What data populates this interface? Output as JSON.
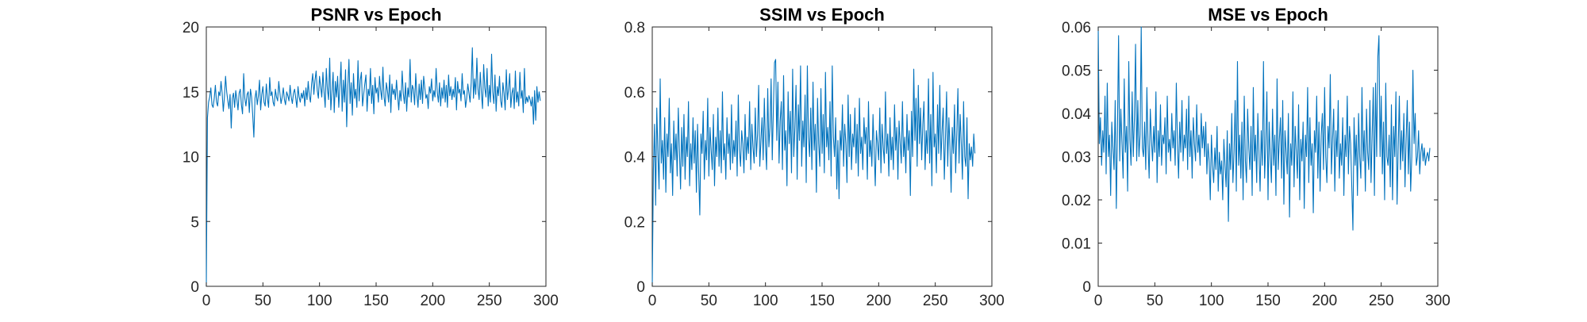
{
  "chart_data": [
    {
      "type": "line",
      "title": "PSNR vs Epoch",
      "xlabel": "",
      "ylabel": "",
      "xlim": [
        0,
        300
      ],
      "ylim": [
        0,
        20
      ],
      "xticks": [
        0,
        50,
        100,
        150,
        200,
        250,
        300
      ],
      "yticks": [
        0,
        5,
        10,
        15,
        20
      ],
      "grid": false,
      "color": "#0072BD",
      "x_step": 1,
      "series": [
        {
          "values": [
            0,
            13,
            14.2,
            14.6,
            15.3,
            14,
            13.8,
            14.5,
            15.5,
            14.2,
            13.9,
            15,
            14.7,
            15.8,
            14.9,
            13.5,
            14.6,
            16.2,
            15,
            14.3,
            13.7,
            14.8,
            12.2,
            14.5,
            14.9,
            13.8,
            15.1,
            14.4,
            13.6,
            14.9,
            15.2,
            14,
            13.3,
            16.4,
            14.5,
            13.9,
            14.8,
            15,
            13.4,
            15.2,
            14.6,
            13.2,
            11.5,
            14.5,
            15.1,
            14,
            14.7,
            15.9,
            13.6,
            14.8,
            15.4,
            14.2,
            13.9,
            15.6,
            14.5,
            13.8,
            16.1,
            14.7,
            15,
            14.2,
            13.9,
            15.2,
            14.6,
            14.3,
            15.8,
            14.9,
            14.1,
            14.6,
            15.3,
            14.4,
            14,
            15,
            14.7,
            14.3,
            15.5,
            14.6,
            14.1,
            14.9,
            15.2,
            14.5,
            13.8,
            15.4,
            14.6,
            14.2,
            14.9,
            14.5,
            15.1,
            13.9,
            15.3,
            14.4,
            15.8,
            14.7,
            14.2,
            15.6,
            16.4,
            14.8,
            15.9,
            16.6,
            15.1,
            14.5,
            16.2,
            15.4,
            14.6,
            16.5,
            15,
            13.8,
            16.8,
            15.2,
            14.4,
            17.6,
            13.6,
            15,
            16.5,
            13.4,
            15.8,
            14.6,
            16.2,
            13.8,
            15.4,
            17.3,
            13.5,
            15.9,
            14.2,
            16.7,
            12.3,
            15.4,
            17.5,
            14.1,
            15.7,
            13.2,
            16.4,
            14.5,
            15.2,
            13.8,
            17.4,
            14.3,
            15.9,
            16.5,
            13.9,
            14.8,
            15.6,
            16.3,
            13.5,
            15.2,
            14.7,
            16.8,
            14.1,
            15.5,
            13.3,
            16.1,
            14.9,
            15.3,
            14.2,
            16.2,
            15.1,
            14.4,
            16.9,
            14.6,
            13.9,
            15.7,
            15.1,
            14.2,
            16.3,
            13.4,
            15.6,
            14.8,
            15.2,
            14.4,
            15.9,
            14.7,
            13.6,
            15.1,
            14.3,
            16.6,
            14.9,
            14.1,
            15.7,
            13.5,
            15.3,
            14.6,
            17.5,
            14.2,
            15.5,
            15.2,
            14,
            16.4,
            14.8,
            13.8,
            15.6,
            14.4,
            15.9,
            14.1,
            16.2,
            15.3,
            14.5,
            14.8,
            13.7,
            15.4,
            14.9,
            16,
            14.3,
            15.1,
            14.6,
            16.8,
            15,
            14.2,
            15.7,
            13.9,
            15.3,
            14.5,
            15.9,
            14.2,
            15.5,
            13.8,
            16.3,
            14.7,
            15.4,
            14.4,
            15.2,
            14.6,
            16.1,
            13.6,
            15.8,
            14.9,
            15.2,
            14.3,
            16.4,
            14.8,
            15.1,
            13.8,
            14.5,
            15.6,
            14.9,
            14.2,
            15.7,
            18.4,
            14.5,
            16,
            14.8,
            17.6,
            15.2,
            14.4,
            16.5,
            14.9,
            13.7,
            17.1,
            15.3,
            14.6,
            16.8,
            13.9,
            15.5,
            14.2,
            17.9,
            15,
            14.1,
            16.3,
            13.5,
            15.4,
            14.7,
            16.2,
            14.3,
            13.8,
            15.7,
            14.9,
            13.6,
            16.7,
            14.4,
            15.2,
            16.4,
            13.8,
            14.9,
            15.3,
            13.7,
            16.6,
            14.2,
            15,
            13.9,
            16.5,
            14.5,
            15.1,
            13.4,
            16.8,
            14.1,
            14.6,
            14.2,
            14.7,
            14.4,
            13.9,
            14.6,
            12.5,
            15.1,
            12.8,
            15.4,
            14.2,
            15,
            14.3
          ]
        }
      ]
    },
    {
      "type": "line",
      "title": "SSIM vs Epoch",
      "xlabel": "",
      "ylabel": "",
      "xlim": [
        0,
        300
      ],
      "ylim": [
        0,
        0.8
      ],
      "xticks": [
        0,
        50,
        100,
        150,
        200,
        250,
        300
      ],
      "yticks": [
        0,
        0.2,
        0.4,
        0.6,
        0.8
      ],
      "grid": false,
      "color": "#0072BD",
      "x_step": 1,
      "series": [
        {
          "values": [
            0,
            0.36,
            0.5,
            0.25,
            0.55,
            0.41,
            0.3,
            0.64,
            0.38,
            0.45,
            0.33,
            0.52,
            0.29,
            0.47,
            0.4,
            0.58,
            0.35,
            0.44,
            0.28,
            0.51,
            0.39,
            0.47,
            0.34,
            0.55,
            0.42,
            0.3,
            0.49,
            0.37,
            0.53,
            0.33,
            0.46,
            0.4,
            0.57,
            0.31,
            0.44,
            0.36,
            0.52,
            0.38,
            0.48,
            0.29,
            0.5,
            0.35,
            0.22,
            0.47,
            0.41,
            0.54,
            0.33,
            0.45,
            0.39,
            0.58,
            0.34,
            0.49,
            0.42,
            0.36,
            0.53,
            0.31,
            0.46,
            0.4,
            0.55,
            0.37,
            0.48,
            0.35,
            0.6,
            0.39,
            0.44,
            0.33,
            0.52,
            0.41,
            0.47,
            0.36,
            0.56,
            0.38,
            0.45,
            0.4,
            0.51,
            0.34,
            0.59,
            0.42,
            0.37,
            0.48,
            0.44,
            0.35,
            0.53,
            0.39,
            0.46,
            0.41,
            0.57,
            0.36,
            0.5,
            0.43,
            0.38,
            0.55,
            0.4,
            0.47,
            0.62,
            0.37,
            0.45,
            0.52,
            0.39,
            0.58,
            0.44,
            0.36,
            0.61,
            0.43,
            0.49,
            0.64,
            0.39,
            0.55,
            0.69,
            0.7,
            0.45,
            0.63,
            0.38,
            0.51,
            0.57,
            0.36,
            0.65,
            0.42,
            0.48,
            0.31,
            0.6,
            0.44,
            0.54,
            0.35,
            0.67,
            0.4,
            0.49,
            0.62,
            0.33,
            0.56,
            0.45,
            0.68,
            0.37,
            0.51,
            0.43,
            0.59,
            0.32,
            0.68,
            0.46,
            0.4,
            0.55,
            0.36,
            0.63,
            0.42,
            0.5,
            0.29,
            0.58,
            0.44,
            0.37,
            0.61,
            0.41,
            0.53,
            0.35,
            0.66,
            0.43,
            0.49,
            0.39,
            0.57,
            0.34,
            0.68,
            0.46,
            0.4,
            0.52,
            0.3,
            0.45,
            0.27,
            0.48,
            0.42,
            0.56,
            0.37,
            0.5,
            0.44,
            0.32,
            0.59,
            0.4,
            0.53,
            0.36,
            0.47,
            0.43,
            0.55,
            0.38,
            0.5,
            0.34,
            0.58,
            0.41,
            0.46,
            0.36,
            0.52,
            0.44,
            0.49,
            0.33,
            0.57,
            0.4,
            0.45,
            0.37,
            0.53,
            0.42,
            0.31,
            0.48,
            0.44,
            0.39,
            0.55,
            0.35,
            0.5,
            0.43,
            0.38,
            0.6,
            0.41,
            0.47,
            0.34,
            0.52,
            0.39,
            0.46,
            0.36,
            0.56,
            0.42,
            0.49,
            0.33,
            0.51,
            0.44,
            0.38,
            0.57,
            0.4,
            0.46,
            0.35,
            0.53,
            0.42,
            0.48,
            0.28,
            0.54,
            0.4,
            0.67,
            0.45,
            0.58,
            0.37,
            0.62,
            0.44,
            0.55,
            0.39,
            0.5,
            0.57,
            0.36,
            0.48,
            0.41,
            0.64,
            0.38,
            0.53,
            0.31,
            0.66,
            0.43,
            0.47,
            0.35,
            0.56,
            0.41,
            0.62,
            0.39,
            0.48,
            0.55,
            0.33,
            0.46,
            0.6,
            0.37,
            0.52,
            0.43,
            0.29,
            0.49,
            0.41,
            0.56,
            0.35,
            0.47,
            0.61,
            0.38,
            0.53,
            0.44,
            0.33,
            0.57,
            0.4,
            0.37,
            0.52,
            0.27,
            0.44,
            0.39,
            0.43,
            0.37,
            0.47,
            0.41
          ]
        }
      ]
    },
    {
      "type": "line",
      "title": "MSE vs Epoch",
      "xlabel": "",
      "ylabel": "",
      "xlim": [
        0,
        300
      ],
      "ylim": [
        0,
        0.06
      ],
      "xticks": [
        0,
        50,
        100,
        150,
        200,
        250,
        300
      ],
      "yticks": [
        0,
        0.01,
        0.02,
        0.03,
        0.04,
        0.05,
        0.06
      ],
      "grid": false,
      "color": "#0072BD",
      "x_step": 1,
      "series": [
        {
          "values": [
            0.06,
            0.033,
            0.039,
            0.028,
            0.036,
            0.031,
            0.044,
            0.026,
            0.047,
            0.03,
            0.035,
            0.021,
            0.038,
            0.032,
            0.027,
            0.043,
            0.018,
            0.036,
            0.058,
            0.029,
            0.041,
            0.033,
            0.025,
            0.048,
            0.031,
            0.037,
            0.022,
            0.052,
            0.034,
            0.028,
            0.045,
            0.03,
            0.039,
            0.056,
            0.029,
            0.043,
            0.03,
            0.035,
            0.06,
            0.032,
            0.03,
            0.038,
            0.027,
            0.046,
            0.033,
            0.025,
            0.041,
            0.034,
            0.029,
            0.037,
            0.031,
            0.045,
            0.024,
            0.036,
            0.03,
            0.042,
            0.028,
            0.035,
            0.033,
            0.039,
            0.026,
            0.044,
            0.031,
            0.034,
            0.029,
            0.04,
            0.032,
            0.036,
            0.028,
            0.047,
            0.033,
            0.025,
            0.038,
            0.031,
            0.043,
            0.029,
            0.035,
            0.032,
            0.041,
            0.027,
            0.044,
            0.03,
            0.036,
            0.025,
            0.039,
            0.033,
            0.029,
            0.042,
            0.031,
            0.035,
            0.028,
            0.04,
            0.032,
            0.037,
            0.03,
            0.038,
            0.026,
            0.033,
            0.029,
            0.02,
            0.035,
            0.028,
            0.024,
            0.032,
            0.027,
            0.037,
            0.022,
            0.031,
            0.026,
            0.029,
            0.02,
            0.034,
            0.028,
            0.023,
            0.036,
            0.015,
            0.033,
            0.027,
            0.04,
            0.024,
            0.031,
            0.043,
            0.022,
            0.052,
            0.028,
            0.035,
            0.025,
            0.038,
            0.02,
            0.044,
            0.029,
            0.024,
            0.041,
            0.032,
            0.027,
            0.037,
            0.021,
            0.046,
            0.029,
            0.035,
            0.024,
            0.04,
            0.031,
            0.022,
            0.036,
            0.028,
            0.052,
            0.025,
            0.033,
            0.045,
            0.02,
            0.038,
            0.03,
            0.024,
            0.041,
            0.028,
            0.035,
            0.021,
            0.048,
            0.027,
            0.034,
            0.039,
            0.025,
            0.043,
            0.019,
            0.036,
            0.031,
            0.026,
            0.04,
            0.016,
            0.033,
            0.028,
            0.045,
            0.023,
            0.037,
            0.031,
            0.025,
            0.042,
            0.02,
            0.034,
            0.029,
            0.038,
            0.018,
            0.035,
            0.03,
            0.046,
            0.024,
            0.039,
            0.028,
            0.033,
            0.017,
            0.036,
            0.031,
            0.044,
            0.025,
            0.038,
            0.022,
            0.035,
            0.04,
            0.027,
            0.046,
            0.03,
            0.024,
            0.037,
            0.032,
            0.049,
            0.026,
            0.034,
            0.041,
            0.022,
            0.036,
            0.03,
            0.043,
            0.025,
            0.033,
            0.028,
            0.039,
            0.021,
            0.035,
            0.03,
            0.044,
            0.026,
            0.037,
            0.033,
            0.023,
            0.013,
            0.039,
            0.028,
            0.035,
            0.021,
            0.04,
            0.03,
            0.025,
            0.046,
            0.029,
            0.036,
            0.022,
            0.041,
            0.031,
            0.027,
            0.043,
            0.024,
            0.035,
            0.046,
            0.021,
            0.047,
            0.03,
            0.053,
            0.058,
            0.03,
            0.044,
            0.026,
            0.038,
            0.02,
            0.047,
            0.03,
            0.028,
            0.035,
            0.023,
            0.042,
            0.02,
            0.037,
            0.03,
            0.045,
            0.019,
            0.032,
            0.044,
            0.027,
            0.036,
            0.029,
            0.04,
            0.023,
            0.034,
            0.043,
            0.026,
            0.038,
            0.022,
            0.03,
            0.05,
            0.033,
            0.04,
            0.028,
            0.03,
            0.036,
            0.026,
            0.031,
            0.033,
            0.029,
            0.032,
            0.028,
            0.03,
            0.031,
            0.029,
            0.032
          ]
        }
      ]
    }
  ]
}
